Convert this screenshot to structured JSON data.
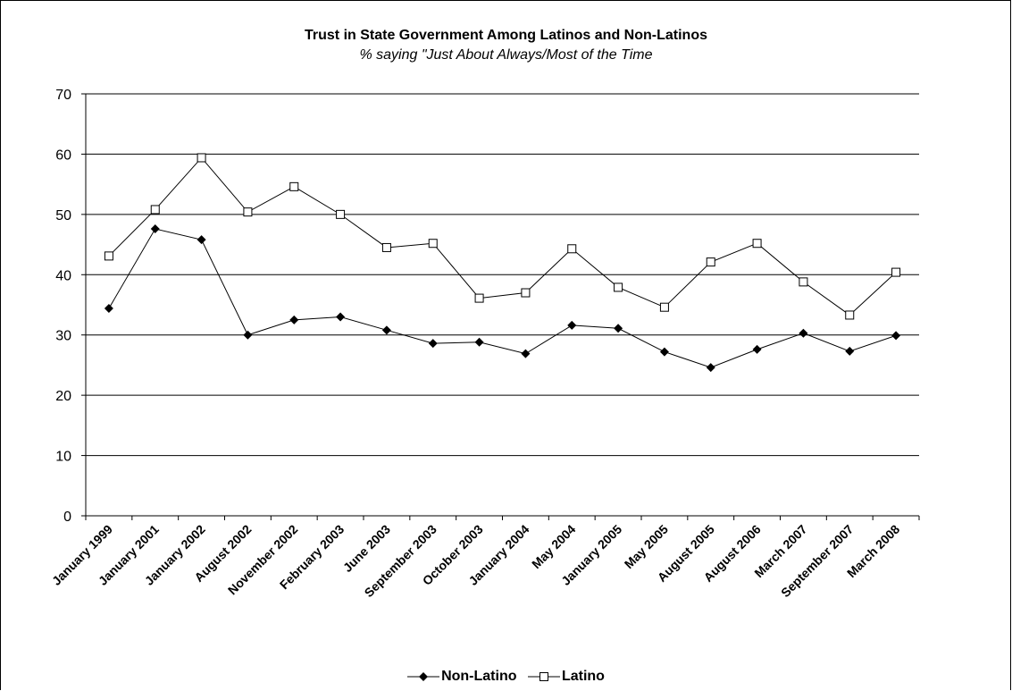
{
  "chart_data": {
    "type": "line",
    "title": "Trust in State Government Among Latinos and Non-Latinos",
    "subtitle": "% saying \"Just About Always/Most of the Time",
    "xlabel": "",
    "ylabel": "",
    "ylim": [
      0,
      70
    ],
    "yticks": [
      "0",
      "10",
      "20",
      "30",
      "40",
      "50",
      "60",
      "70"
    ],
    "grid": true,
    "legend_position": "bottom",
    "categories": [
      "January 1999",
      "January 2001",
      "January 2002",
      "August 2002",
      "November 2002",
      "February 2003",
      "June 2003",
      "September 2003",
      "October 2003",
      "January 2004",
      "May 2004",
      "January 2005",
      "May 2005",
      "August 2005",
      "August 2006",
      "March 2007",
      "September 2007",
      "March 2008"
    ],
    "series": [
      {
        "name": "Non-Latino",
        "marker": "diamond-filled",
        "color": "#000000",
        "values": [
          34.4,
          47.6,
          45.8,
          30.0,
          32.5,
          33.0,
          30.8,
          28.6,
          28.8,
          26.9,
          31.6,
          31.1,
          27.2,
          24.6,
          27.6,
          30.3,
          27.3,
          29.9
        ]
      },
      {
        "name": "Latino",
        "marker": "square-open",
        "color": "#000000",
        "values": [
          43.1,
          50.8,
          59.4,
          50.4,
          54.6,
          50.0,
          44.5,
          45.2,
          36.1,
          37.0,
          44.3,
          37.9,
          34.6,
          42.1,
          45.2,
          38.8,
          33.3,
          40.4
        ]
      }
    ]
  }
}
